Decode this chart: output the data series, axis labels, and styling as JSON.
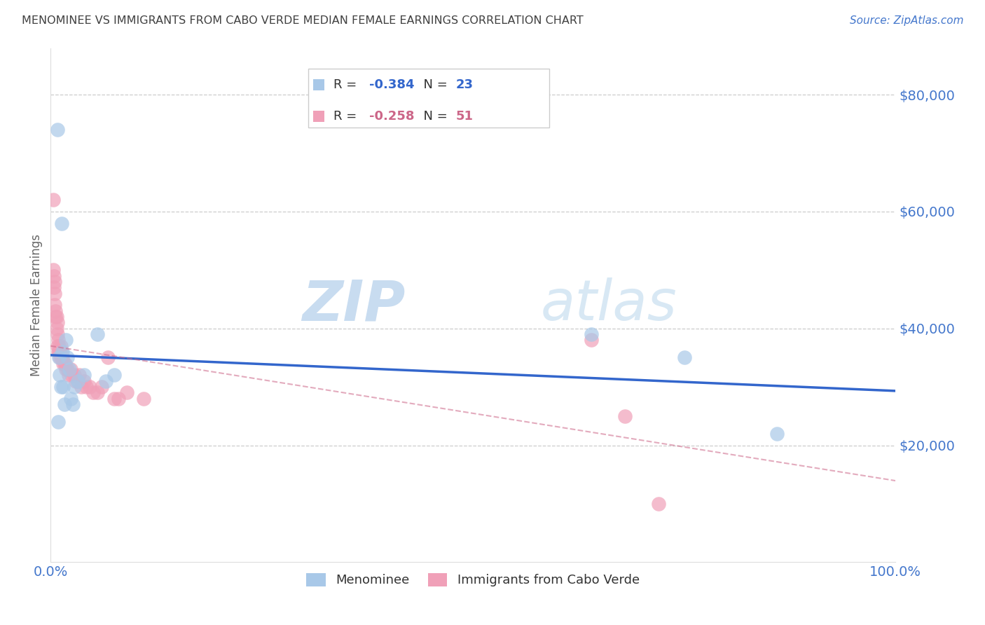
{
  "title": "MENOMINEE VS IMMIGRANTS FROM CABO VERDE MEDIAN FEMALE EARNINGS CORRELATION CHART",
  "source": "Source: ZipAtlas.com",
  "ylabel": "Median Female Earnings",
  "ylim": [
    0,
    88000
  ],
  "xlim": [
    0.0,
    1.0
  ],
  "legend1_r": "-0.384",
  "legend1_n": "23",
  "legend2_r": "-0.258",
  "legend2_n": "51",
  "menominee_color": "#a8c8e8",
  "cabo_verde_color": "#f0a0b8",
  "menominee_line_color": "#3366cc",
  "cabo_verde_line_color": "#cc6688",
  "watermark_zip": "ZIP",
  "watermark_atlas": "atlas",
  "menominee_x": [
    0.008,
    0.009,
    0.01,
    0.011,
    0.012,
    0.013,
    0.014,
    0.015,
    0.016,
    0.018,
    0.02,
    0.022,
    0.024,
    0.026,
    0.028,
    0.032,
    0.04,
    0.055,
    0.065,
    0.075,
    0.64,
    0.75,
    0.86
  ],
  "menominee_y": [
    74000,
    24000,
    35000,
    32000,
    30000,
    58000,
    36000,
    30000,
    27000,
    38000,
    35000,
    33000,
    28000,
    27000,
    30000,
    31000,
    32000,
    39000,
    31000,
    32000,
    39000,
    35000,
    22000
  ],
  "cabo_verde_x": [
    0.003,
    0.003,
    0.004,
    0.004,
    0.005,
    0.005,
    0.005,
    0.006,
    0.006,
    0.007,
    0.007,
    0.008,
    0.008,
    0.008,
    0.009,
    0.009,
    0.01,
    0.01,
    0.011,
    0.011,
    0.012,
    0.012,
    0.013,
    0.014,
    0.015,
    0.016,
    0.017,
    0.018,
    0.02,
    0.021,
    0.024,
    0.025,
    0.028,
    0.03,
    0.032,
    0.034,
    0.036,
    0.04,
    0.042,
    0.046,
    0.05,
    0.055,
    0.06,
    0.068,
    0.075,
    0.08,
    0.09,
    0.11,
    0.64,
    0.68,
    0.72
  ],
  "cabo_verde_y": [
    62000,
    50000,
    49000,
    47000,
    48000,
    46000,
    44000,
    43000,
    42000,
    42000,
    40000,
    41000,
    39000,
    37000,
    36000,
    38000,
    37000,
    36000,
    36000,
    35000,
    37000,
    35000,
    36000,
    35000,
    34000,
    34000,
    34000,
    33000,
    33000,
    32000,
    33000,
    32000,
    32000,
    31000,
    31000,
    32000,
    30000,
    31000,
    30000,
    30000,
    29000,
    29000,
    30000,
    35000,
    28000,
    28000,
    29000,
    28000,
    38000,
    25000,
    10000
  ],
  "background_color": "#ffffff",
  "grid_color": "#cccccc",
  "title_color": "#404040",
  "tick_color": "#4477cc",
  "ylabel_color": "#666666"
}
